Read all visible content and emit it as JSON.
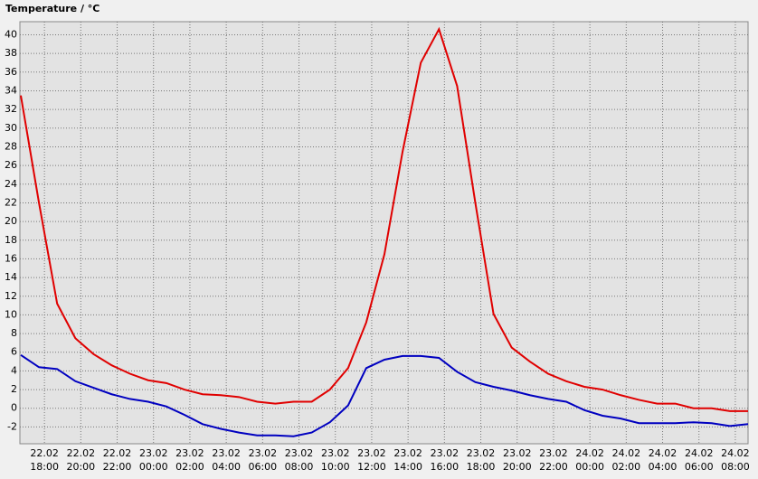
{
  "chart_data": {
    "type": "line",
    "title": "Temperature / °C",
    "x": [
      16.7,
      17.7,
      18.7,
      19.7,
      20.7,
      21.7,
      22.7,
      23.7,
      24.7,
      25.7,
      26.7,
      27.7,
      28.7,
      29.7,
      30.7,
      31.7,
      32.7,
      33.7,
      34.7,
      35.7,
      36.7,
      37.7,
      38.7,
      39.7,
      40.7,
      41.7,
      42.7,
      43.7,
      44.7,
      45.7,
      46.7,
      47.7,
      48.7,
      49.7,
      50.7,
      51.7,
      52.7,
      53.7,
      54.7,
      55.7,
      56.7
    ],
    "series": [
      {
        "color": "#e00000",
        "values": [
          33.5,
          22,
          11.2,
          7.5,
          5.8,
          4.6,
          3.7,
          3.0,
          2.7,
          2.0,
          1.5,
          1.4,
          1.2,
          0.7,
          0.5,
          0.7,
          0.7,
          2.0,
          4.3,
          9.2,
          16.5,
          27.5,
          37,
          40.6,
          34.5,
          22,
          10.1,
          6.5,
          5.0,
          3.7,
          2.9,
          2.3,
          2.0,
          1.4,
          0.9,
          0.5,
          0.5,
          0.0,
          0.0,
          -0.3,
          -0.3
        ]
      },
      {
        "color": "#0000c0",
        "values": [
          5.7,
          4.4,
          4.2,
          2.9,
          2.2,
          1.5,
          1.0,
          0.7,
          0.2,
          -0.7,
          -1.7,
          -2.2,
          -2.6,
          -2.9,
          -2.9,
          -3.0,
          -2.6,
          -1.5,
          0.3,
          4.3,
          5.2,
          5.6,
          5.6,
          5.4,
          3.9,
          2.8,
          2.3,
          1.9,
          1.4,
          1.0,
          0.7,
          -0.2,
          -0.8,
          -1.1,
          -1.6,
          -1.6,
          -1.6,
          -1.5,
          -1.6,
          -1.9,
          -1.7
        ]
      }
    ],
    "xlim": [
      16.65,
      56.7
    ],
    "ylim": [
      -3.8,
      41.4
    ],
    "yticks": [
      -2,
      0,
      2,
      4,
      6,
      8,
      10,
      12,
      14,
      16,
      18,
      20,
      22,
      24,
      26,
      28,
      30,
      32,
      34,
      36,
      38,
      40
    ],
    "xticks": [
      {
        "value": 18,
        "label": [
          "22.02",
          "18:00"
        ]
      },
      {
        "value": 20,
        "label": [
          "22.02",
          "20:00"
        ]
      },
      {
        "value": 22,
        "label": [
          "22.02",
          "22:00"
        ]
      },
      {
        "value": 24,
        "label": [
          "23.02",
          "00:00"
        ]
      },
      {
        "value": 26,
        "label": [
          "23.02",
          "02:00"
        ]
      },
      {
        "value": 28,
        "label": [
          "23.02",
          "04:00"
        ]
      },
      {
        "value": 30,
        "label": [
          "23.02",
          "06:00"
        ]
      },
      {
        "value": 32,
        "label": [
          "23.02",
          "08:00"
        ]
      },
      {
        "value": 34,
        "label": [
          "23.02",
          "10:00"
        ]
      },
      {
        "value": 36,
        "label": [
          "23.02",
          "12:00"
        ]
      },
      {
        "value": 38,
        "label": [
          "23.02",
          "14:00"
        ]
      },
      {
        "value": 40,
        "label": [
          "23.02",
          "16:00"
        ]
      },
      {
        "value": 42,
        "label": [
          "23.02",
          "18:00"
        ]
      },
      {
        "value": 44,
        "label": [
          "23.02",
          "20:00"
        ]
      },
      {
        "value": 46,
        "label": [
          "23.02",
          "22:00"
        ]
      },
      {
        "value": 48,
        "label": [
          "24.02",
          "00:00"
        ]
      },
      {
        "value": 50,
        "label": [
          "24.02",
          "02:00"
        ]
      },
      {
        "value": 52,
        "label": [
          "24.02",
          "04:00"
        ]
      },
      {
        "value": 54,
        "label": [
          "24.02",
          "06:00"
        ]
      },
      {
        "value": 56,
        "label": [
          "24.02",
          "08:00"
        ]
      }
    ],
    "grid": true
  }
}
